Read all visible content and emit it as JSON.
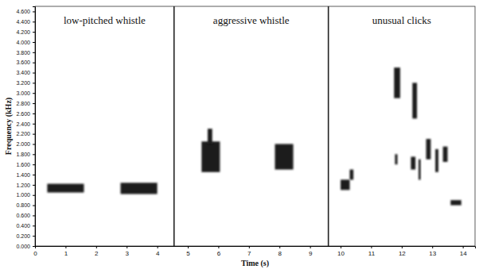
{
  "chart_data": {
    "type": "spectrogram",
    "x_label": "Time (s)",
    "y_label": "Frequency (kHz)",
    "color": "#1c1c1c",
    "xlim": [
      0,
      14.4
    ],
    "xticks": [
      0,
      1,
      2,
      3,
      4,
      5,
      6,
      7,
      8,
      9,
      10,
      11,
      12,
      13,
      14
    ],
    "ylim": [
      0,
      4.7
    ],
    "yticks": [
      {
        "value": 0,
        "label": "0.000"
      },
      {
        "value": 0.2,
        "label": "0.200"
      },
      {
        "value": 0.4,
        "label": "0.400"
      },
      {
        "value": 0.6,
        "label": "0.600"
      },
      {
        "value": 0.8,
        "label": "0.800"
      },
      {
        "value": 1.0,
        "label": "1.000"
      },
      {
        "value": 1.2,
        "label": "1.200"
      },
      {
        "value": 1.4,
        "label": "1.400"
      },
      {
        "value": 1.6,
        "label": "1.600"
      },
      {
        "value": 1.8,
        "label": "1.800"
      },
      {
        "value": 2.0,
        "label": "2.000"
      },
      {
        "value": 2.2,
        "label": "2.200"
      },
      {
        "value": 2.4,
        "label": "2.400"
      },
      {
        "value": 2.6,
        "label": "2.600"
      },
      {
        "value": 2.8,
        "label": "2.800"
      },
      {
        "value": 3.0,
        "label": "3.000"
      },
      {
        "value": 3.2,
        "label": "3.200"
      },
      {
        "value": 3.4,
        "label": "3.400"
      },
      {
        "value": 3.6,
        "label": "3.600"
      },
      {
        "value": 3.8,
        "label": "3.800"
      },
      {
        "value": 4.0,
        "label": "4.000"
      },
      {
        "value": 4.2,
        "label": "4.200"
      },
      {
        "value": 4.4,
        "label": "4.400"
      },
      {
        "value": 4.6,
        "label": "4.600"
      }
    ],
    "sections": [
      {
        "label": "low-pitched whistle",
        "start": 0,
        "end": 4.55
      },
      {
        "label": "aggressive whistle",
        "start": 4.55,
        "end": 9.6
      },
      {
        "label": "unusual clicks",
        "start": 9.6,
        "end": 14.4
      }
    ],
    "calls": [
      {
        "t0": 0.4,
        "t1": 1.6,
        "f0": 1.05,
        "f1": 1.22
      },
      {
        "t0": 2.8,
        "t1": 4.0,
        "f0": 1.02,
        "f1": 1.24
      },
      {
        "t0": 5.45,
        "t1": 6.05,
        "f0": 1.45,
        "f1": 2.05
      },
      {
        "t0": 5.65,
        "t1": 5.8,
        "f0": 2.0,
        "f1": 2.3
      },
      {
        "t0": 7.85,
        "t1": 8.45,
        "f0": 1.5,
        "f1": 2.0
      },
      {
        "t0": 10.0,
        "t1": 10.3,
        "f0": 1.1,
        "f1": 1.3
      },
      {
        "t0": 10.3,
        "t1": 10.42,
        "f0": 1.3,
        "f1": 1.5
      },
      {
        "t0": 11.75,
        "t1": 11.95,
        "f0": 2.9,
        "f1": 3.5
      },
      {
        "t0": 12.35,
        "t1": 12.5,
        "f0": 2.5,
        "f1": 3.2
      },
      {
        "t0": 11.78,
        "t1": 11.86,
        "f0": 1.6,
        "f1": 1.8
      },
      {
        "t0": 12.3,
        "t1": 12.45,
        "f0": 1.5,
        "f1": 1.75
      },
      {
        "t0": 12.55,
        "t1": 12.62,
        "f0": 1.3,
        "f1": 1.7
      },
      {
        "t0": 12.8,
        "t1": 12.95,
        "f0": 1.7,
        "f1": 2.1
      },
      {
        "t0": 13.1,
        "t1": 13.2,
        "f0": 1.45,
        "f1": 1.9
      },
      {
        "t0": 13.35,
        "t1": 13.5,
        "f0": 1.65,
        "f1": 1.95
      },
      {
        "t0": 13.6,
        "t1": 13.95,
        "f0": 0.8,
        "f1": 0.9
      }
    ]
  }
}
